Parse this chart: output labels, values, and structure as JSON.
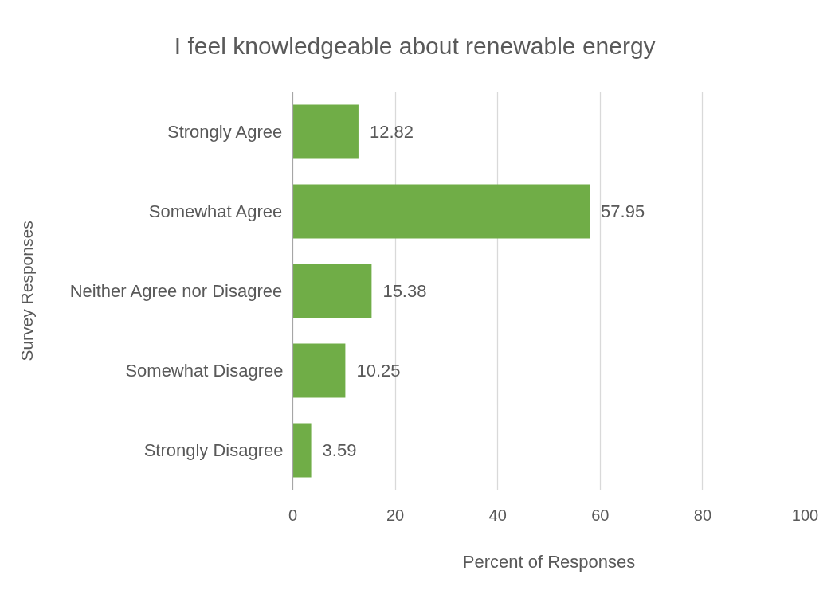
{
  "chart_data": {
    "type": "bar",
    "orientation": "horizontal",
    "title": "I feel knowledgeable about renewable energy",
    "xlabel": "Percent of Responses",
    "ylabel": "Survey Responses",
    "categories": [
      "Strongly Agree",
      "Somewhat Agree",
      "Neither Agree nor Disagree",
      "Somewhat Disagree",
      "Strongly Disagree"
    ],
    "series": [
      {
        "color": "#70ad47",
        "values": [
          12.82,
          57.95,
          15.38,
          10.25,
          3.59
        ]
      }
    ],
    "xlim": [
      0,
      100
    ],
    "xticks": [
      0,
      20,
      40,
      60,
      80,
      100
    ],
    "grid": "x",
    "data_labels": true
  }
}
